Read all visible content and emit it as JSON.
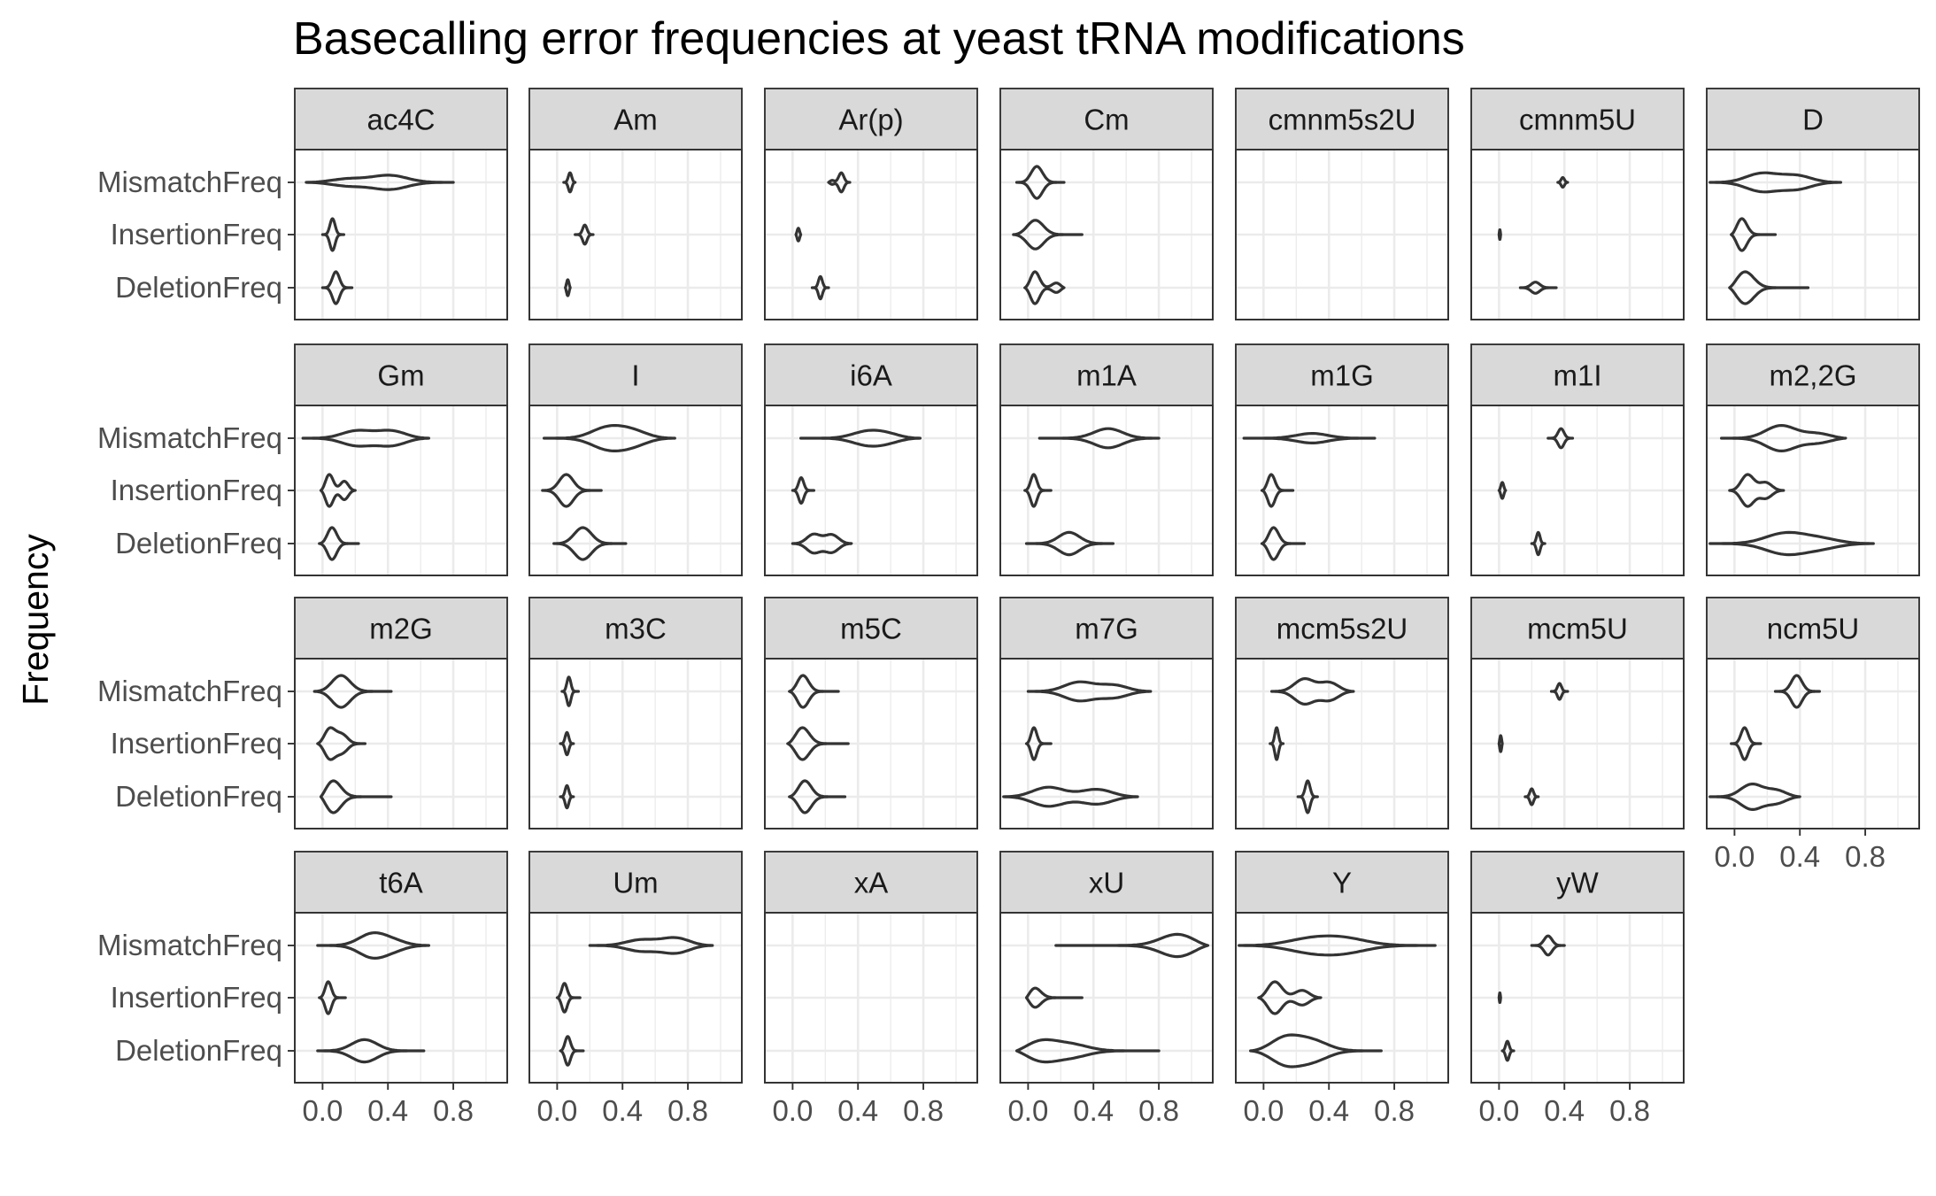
{
  "chart_data": {
    "type": "violin",
    "title": "Basecalling error frequencies at yeast tRNA modifications",
    "xlabel": "",
    "ylabel": "Frequency",
    "categories": [
      "MismatchFreq",
      "InsertionFreq",
      "DeletionFreq"
    ],
    "x_ticks": [
      "0.0",
      "0.4",
      "0.8"
    ],
    "x_tick_values": [
      0.0,
      0.4,
      0.8
    ],
    "xlim": [
      -0.17,
      1.13
    ],
    "grid": true,
    "facets": [
      {
        "name": "ac4C",
        "violins": [
          [
            -0.1,
            0.8,
            [
              [
                0.12,
                0.3
              ],
              [
                0.42,
                0.45
              ]
            ]
          ],
          [
            0.0,
            0.13,
            [
              [
                0.06,
                1.0
              ]
            ]
          ],
          [
            0.0,
            0.18,
            [
              [
                0.08,
                1.0
              ]
            ]
          ]
        ]
      },
      {
        "name": "Am",
        "violins": [
          [
            0.04,
            0.11,
            [
              [
                0.08,
                0.6
              ]
            ]
          ],
          [
            0.11,
            0.22,
            [
              [
                0.17,
                0.6
              ]
            ]
          ],
          [
            0.05,
            0.08,
            [
              [
                0.065,
                0.5
              ]
            ]
          ]
        ]
      },
      {
        "name": "Ar(p)",
        "violins": [
          [
            0.22,
            0.35,
            [
              [
                0.23,
                0.3
              ],
              [
                0.3,
                0.6
              ]
            ]
          ],
          [
            0.02,
            0.05,
            [
              [
                0.035,
                0.4
              ]
            ]
          ],
          [
            0.12,
            0.22,
            [
              [
                0.17,
                0.7
              ]
            ]
          ]
        ]
      },
      {
        "name": "Cm",
        "violins": [
          [
            -0.07,
            0.22,
            [
              [
                0.05,
                1.0
              ]
            ]
          ],
          [
            -0.09,
            0.33,
            [
              [
                0.03,
                0.9
              ]
            ]
          ],
          [
            -0.02,
            0.22,
            [
              [
                0.03,
                1.0
              ],
              [
                0.19,
                0.4
              ]
            ]
          ]
        ]
      },
      {
        "name": "cmnm5s2U",
        "violins": []
      },
      {
        "name": "cmnm5U",
        "violins": [
          [
            0.36,
            0.42,
            [
              [
                0.39,
                0.3
              ]
            ]
          ],
          [
            0.0,
            0.01,
            [
              [
                0.005,
                0.3
              ]
            ]
          ],
          [
            0.13,
            0.35,
            [
              [
                0.22,
                0.35
              ]
            ]
          ]
        ]
      },
      {
        "name": "D",
        "violins": [
          [
            -0.15,
            0.65,
            [
              [
                0.15,
                0.6
              ],
              [
                0.4,
                0.5
              ]
            ]
          ],
          [
            -0.02,
            0.25,
            [
              [
                0.03,
                1.0
              ]
            ]
          ],
          [
            -0.03,
            0.45,
            [
              [
                0.03,
                1.0
              ]
            ]
          ]
        ]
      },
      {
        "name": "Gm",
        "violins": [
          [
            -0.12,
            0.65,
            [
              [
                0.2,
                0.4
              ],
              [
                0.45,
                0.5
              ]
            ]
          ],
          [
            -0.01,
            0.2,
            [
              [
                0.03,
                1.0
              ],
              [
                0.14,
                0.45
              ]
            ]
          ],
          [
            -0.02,
            0.22,
            [
              [
                0.05,
                1.0
              ]
            ]
          ]
        ]
      },
      {
        "name": "I",
        "violins": [
          [
            -0.08,
            0.72,
            [
              [
                0.3,
                0.8
              ],
              [
                0.48,
                0.7
              ]
            ]
          ],
          [
            -0.09,
            0.27,
            [
              [
                0.05,
                1.0
              ]
            ]
          ],
          [
            -0.02,
            0.42,
            [
              [
                0.15,
                1.0
              ]
            ]
          ]
        ]
      },
      {
        "name": "i6A",
        "violins": [
          [
            0.05,
            0.78,
            [
              [
                0.45,
                0.5
              ],
              [
                0.6,
                0.5
              ]
            ]
          ],
          [
            0.0,
            0.13,
            [
              [
                0.05,
                0.8
              ]
            ]
          ],
          [
            0.0,
            0.36,
            [
              [
                0.12,
                0.6
              ],
              [
                0.25,
                0.6
              ]
            ]
          ]
        ]
      },
      {
        "name": "m1A",
        "violins": [
          [
            0.07,
            0.8,
            [
              [
                0.5,
                0.6
              ]
            ]
          ],
          [
            -0.02,
            0.14,
            [
              [
                0.03,
                1.0
              ]
            ]
          ],
          [
            -0.01,
            0.52,
            [
              [
                0.25,
                0.7
              ]
            ]
          ]
        ]
      },
      {
        "name": "m1G",
        "violins": [
          [
            -0.12,
            0.68,
            [
              [
                0.3,
                0.3
              ]
            ]
          ],
          [
            -0.01,
            0.18,
            [
              [
                0.04,
                1.0
              ]
            ]
          ],
          [
            -0.01,
            0.25,
            [
              [
                0.05,
                1.0
              ]
            ]
          ]
        ]
      },
      {
        "name": "m1I",
        "violins": [
          [
            0.3,
            0.45,
            [
              [
                0.38,
                0.6
              ]
            ]
          ],
          [
            0.0,
            0.04,
            [
              [
                0.02,
                0.5
              ]
            ]
          ],
          [
            0.2,
            0.28,
            [
              [
                0.24,
                0.7
              ]
            ]
          ]
        ]
      },
      {
        "name": "m2,2G",
        "violins": [
          [
            -0.08,
            0.68,
            [
              [
                0.28,
                0.8
              ],
              [
                0.55,
                0.5
              ]
            ]
          ],
          [
            -0.03,
            0.3,
            [
              [
                0.07,
                1.0
              ],
              [
                0.2,
                0.5
              ]
            ]
          ],
          [
            -0.15,
            0.85,
            [
              [
                0.3,
                0.7
              ],
              [
                0.55,
                0.4
              ]
            ]
          ]
        ]
      },
      {
        "name": "m2G",
        "violins": [
          [
            -0.05,
            0.42,
            [
              [
                0.1,
                1.0
              ]
            ]
          ],
          [
            -0.03,
            0.26,
            [
              [
                0.03,
                1.0
              ],
              [
                0.12,
                0.4
              ]
            ]
          ],
          [
            -0.01,
            0.42,
            [
              [
                0.03,
                1.0
              ]
            ]
          ]
        ]
      },
      {
        "name": "m3C",
        "violins": [
          [
            0.03,
            0.13,
            [
              [
                0.07,
                0.9
              ]
            ]
          ],
          [
            0.02,
            0.1,
            [
              [
                0.06,
                0.7
              ]
            ]
          ],
          [
            0.02,
            0.1,
            [
              [
                0.06,
                0.7
              ]
            ]
          ]
        ]
      },
      {
        "name": "m5C",
        "violins": [
          [
            -0.02,
            0.28,
            [
              [
                0.05,
                1.0
              ]
            ]
          ],
          [
            -0.03,
            0.34,
            [
              [
                0.04,
                1.0
              ]
            ]
          ],
          [
            -0.02,
            0.32,
            [
              [
                0.06,
                1.0
              ]
            ]
          ]
        ]
      },
      {
        "name": "m7G",
        "violins": [
          [
            0.0,
            0.75,
            [
              [
                0.3,
                0.6
              ],
              [
                0.55,
                0.5
              ]
            ]
          ],
          [
            -0.01,
            0.14,
            [
              [
                0.03,
                1.0
              ]
            ]
          ],
          [
            -0.15,
            0.67,
            [
              [
                0.1,
                0.6
              ],
              [
                0.45,
                0.5
              ]
            ]
          ]
        ]
      },
      {
        "name": "mcm5s2U",
        "violins": [
          [
            0.05,
            0.55,
            [
              [
                0.24,
                0.8
              ],
              [
                0.42,
                0.7
              ]
            ]
          ],
          [
            0.04,
            0.12,
            [
              [
                0.08,
                1.0
              ]
            ]
          ],
          [
            0.21,
            0.33,
            [
              [
                0.27,
                1.0
              ]
            ]
          ]
        ]
      },
      {
        "name": "mcm5U",
        "violins": [
          [
            0.32,
            0.42,
            [
              [
                0.37,
                0.5
              ]
            ]
          ],
          [
            0.0,
            0.02,
            [
              [
                0.01,
                0.5
              ]
            ]
          ],
          [
            0.16,
            0.24,
            [
              [
                0.2,
                0.5
              ]
            ]
          ]
        ]
      },
      {
        "name": "ncm5U",
        "violins": [
          [
            0.25,
            0.52,
            [
              [
                0.38,
                1.0
              ]
            ]
          ],
          [
            -0.02,
            0.16,
            [
              [
                0.06,
                1.0
              ]
            ]
          ],
          [
            -0.15,
            0.4,
            [
              [
                0.1,
                0.8
              ],
              [
                0.28,
                0.6
              ]
            ]
          ]
        ]
      },
      {
        "name": "t6A",
        "violins": [
          [
            -0.03,
            0.65,
            [
              [
                0.3,
                0.8
              ],
              [
                0.45,
                0.4
              ]
            ]
          ],
          [
            -0.02,
            0.14,
            [
              [
                0.03,
                1.0
              ]
            ]
          ],
          [
            -0.03,
            0.62,
            [
              [
                0.25,
                0.7
              ]
            ]
          ]
        ]
      },
      {
        "name": "Um",
        "violins": [
          [
            0.2,
            0.95,
            [
              [
                0.5,
                0.3
              ],
              [
                0.75,
                0.5
              ]
            ]
          ],
          [
            0.0,
            0.14,
            [
              [
                0.04,
                0.9
              ]
            ]
          ],
          [
            0.02,
            0.16,
            [
              [
                0.06,
                0.9
              ]
            ]
          ]
        ]
      },
      {
        "name": "xA",
        "violins": []
      },
      {
        "name": "xU",
        "violins": [
          [
            0.17,
            1.1,
            [
              [
                0.98,
                0.7
              ]
            ]
          ],
          [
            -0.01,
            0.33,
            [
              [
                0.01,
                0.6
              ]
            ]
          ],
          [
            -0.07,
            0.8,
            [
              [
                0.01,
                0.7
              ],
              [
                0.25,
                0.2
              ]
            ]
          ]
        ]
      },
      {
        "name": "Y",
        "violins": [
          [
            -0.15,
            1.05,
            [
              [
                0.25,
                0.6
              ],
              [
                0.5,
                0.6
              ]
            ]
          ],
          [
            -0.03,
            0.35,
            [
              [
                0.05,
                1.0
              ],
              [
                0.25,
                0.4
              ]
            ]
          ],
          [
            -0.08,
            0.72,
            [
              [
                0.1,
                1.0
              ],
              [
                0.3,
                0.5
              ]
            ]
          ]
        ]
      },
      {
        "name": "yW",
        "violins": [
          [
            0.2,
            0.4,
            [
              [
                0.3,
                0.6
              ]
            ]
          ],
          [
            0.0,
            0.01,
            [
              [
                0.005,
                0.3
              ]
            ]
          ],
          [
            0.02,
            0.09,
            [
              [
                0.05,
                0.6
              ]
            ]
          ]
        ]
      }
    ]
  }
}
